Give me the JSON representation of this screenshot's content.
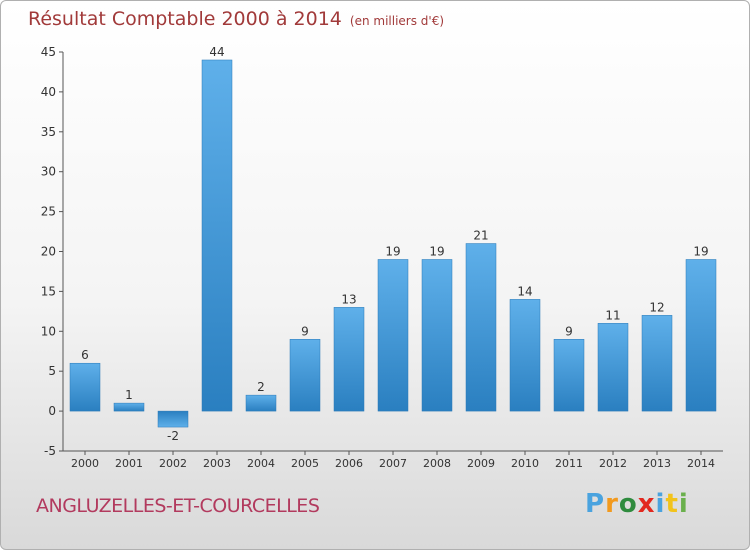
{
  "title": "Résultat Comptable 2000 à 2014",
  "title_unit": "(en milliers d'€)",
  "commune": "ANGLUZELLES-ET-COURCELLES",
  "logo": {
    "letters": [
      "P",
      "r",
      "o",
      "x",
      "i",
      "t",
      "i"
    ],
    "colors": [
      "#4aa3df",
      "#f29a1e",
      "#2e8b3e",
      "#e2281f",
      "#4aa3df",
      "#f2c31b",
      "#6ab04c"
    ]
  },
  "colors": {
    "bar_light": "#5fb0ea",
    "bar_dark": "#2a7fc0",
    "axis": "#555555",
    "grid": "#d9d9d9",
    "label": "#333333"
  },
  "chart_data": {
    "type": "bar",
    "title": "Résultat Comptable 2000 à 2014",
    "ylabel": "en milliers d'€",
    "xlabel": "",
    "categories": [
      "2000",
      "2001",
      "2002",
      "2003",
      "2004",
      "2005",
      "2006",
      "2007",
      "2008",
      "2009",
      "2010",
      "2011",
      "2012",
      "2013",
      "2014"
    ],
    "values": [
      6,
      1,
      -2,
      44,
      2,
      9,
      13,
      19,
      19,
      21,
      14,
      9,
      11,
      12,
      19
    ],
    "ylim": [
      -5,
      45
    ],
    "yticks": [
      -5,
      0,
      5,
      10,
      15,
      20,
      25,
      30,
      35,
      40,
      45
    ],
    "grid": false,
    "legend": "none"
  }
}
